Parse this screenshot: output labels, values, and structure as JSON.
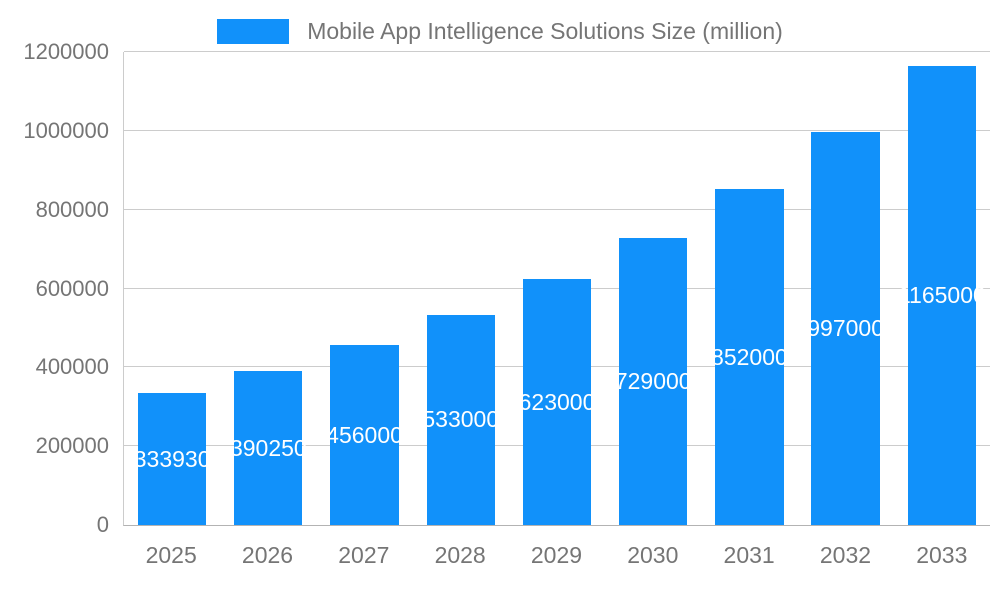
{
  "chart_data": {
    "type": "bar",
    "title": "Mobile App Intelligence Solutions Size (million)",
    "categories": [
      "2025",
      "2026",
      "2027",
      "2028",
      "2029",
      "2030",
      "2031",
      "2032",
      "2033"
    ],
    "values": [
      333930,
      390250,
      456000,
      533000,
      623000,
      729000,
      852000,
      997000,
      1165000
    ],
    "ylim": [
      0,
      1200000
    ],
    "y_ticks": [
      0,
      200000,
      400000,
      600000,
      800000,
      1000000,
      1200000
    ],
    "bar_color": "#1191fa",
    "bar_label_color": "#ffffff",
    "axis_label_color": "#757575",
    "grid": true,
    "legend_position": "top"
  }
}
